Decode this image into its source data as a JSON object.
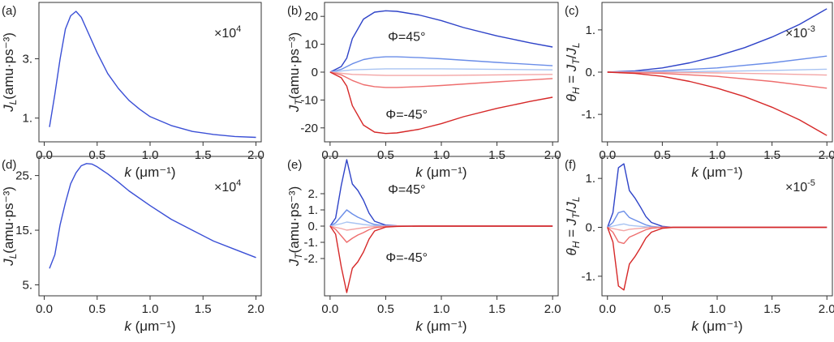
{
  "chart_data": [
    {
      "id": "a",
      "type": "line",
      "panel_label": "(a)",
      "ylabel_main": "J",
      "ylabel_sub": "L",
      "ylabel_unit": "(amu·ps⁻³)",
      "ylabel_display": "JL(amu·ps⁻³)",
      "xlabel_main": "k",
      "xlabel_unit": " (μm⁻¹)",
      "xlabel_display": "k (μm⁻¹)",
      "xlim": [
        -0.05,
        2.05
      ],
      "ylim": [
        0.2,
        4.9
      ],
      "xticks": [
        0.0,
        0.5,
        1.0,
        1.5,
        2.0
      ],
      "xticklabels": [
        "0.0",
        "0.5",
        "1.0",
        "1.5",
        "2.0"
      ],
      "yticks": [
        1,
        3
      ],
      "yticklabels": [
        "1.",
        "3."
      ],
      "multiplier": "×10",
      "multiplier_exp": "4",
      "multiplier_display": "×10^4",
      "annotations": [],
      "series": [
        {
          "color": "#3a4fd6",
          "x": [
            0.05,
            0.1,
            0.15,
            0.2,
            0.25,
            0.3,
            0.35,
            0.4,
            0.5,
            0.6,
            0.7,
            0.8,
            0.9,
            1.0,
            1.2,
            1.4,
            1.6,
            1.8,
            2.0
          ],
          "y": [
            0.7,
            1.8,
            3.0,
            4.0,
            4.45,
            4.6,
            4.4,
            4.0,
            3.2,
            2.5,
            2.0,
            1.6,
            1.3,
            1.05,
            0.75,
            0.55,
            0.45,
            0.38,
            0.35
          ]
        }
      ]
    },
    {
      "id": "b",
      "type": "line",
      "panel_label": "(b)",
      "ylabel_main": "J",
      "ylabel_sub": "T",
      "ylabel_unit": "(amu·ps⁻³)",
      "ylabel_display": "JT(amu·ps⁻³)",
      "xlabel_main": "k",
      "xlabel_unit": " (μm⁻¹)",
      "xlabel_display": "k (μm⁻¹)",
      "xlim": [
        -0.05,
        2.05
      ],
      "ylim": [
        -25,
        25
      ],
      "xticks": [
        0.0,
        0.5,
        1.0,
        1.5,
        2.0
      ],
      "xticklabels": [
        "0.0",
        "0.5",
        "1.0",
        "1.5",
        "2.0"
      ],
      "yticks": [
        -20,
        -10,
        0,
        10,
        20
      ],
      "yticklabels": [
        "-20",
        "-10",
        "0",
        "10",
        "20"
      ],
      "multiplier": "",
      "multiplier_exp": "",
      "multiplier_display": "",
      "annotations": [
        {
          "text": "Φ=45°",
          "x": 0.52,
          "y": 13
        },
        {
          "text": "Φ=-45°",
          "x": 0.5,
          "y": -15
        }
      ],
      "series": [
        {
          "color": "#2e43c8",
          "x": [
            0.0,
            0.1,
            0.15,
            0.2,
            0.3,
            0.4,
            0.5,
            0.6,
            0.8,
            1.0,
            1.2,
            1.5,
            1.8,
            2.0
          ],
          "y": [
            0,
            2,
            5,
            12,
            19,
            21.5,
            22,
            21.8,
            20.5,
            18.5,
            16,
            13,
            10.5,
            9
          ]
        },
        {
          "color": "#6a8de8",
          "x": [
            0.0,
            0.1,
            0.2,
            0.3,
            0.4,
            0.5,
            0.6,
            0.8,
            1.0,
            1.5,
            2.0
          ],
          "y": [
            0,
            1,
            3,
            4.5,
            5.2,
            5.5,
            5.5,
            5.2,
            4.8,
            3.5,
            2.3
          ]
        },
        {
          "color": "#a9c4f2",
          "x": [
            0.0,
            0.2,
            0.5,
            1.0,
            1.5,
            2.0
          ],
          "y": [
            0,
            0.8,
            1.2,
            1.2,
            1.0,
            0.8
          ]
        },
        {
          "color": "#f3a6a6",
          "x": [
            0.0,
            0.2,
            0.5,
            1.0,
            1.5,
            2.0
          ],
          "y": [
            0,
            -0.8,
            -1.2,
            -1.2,
            -1.0,
            -0.8
          ]
        },
        {
          "color": "#ee6e6e",
          "x": [
            0.0,
            0.1,
            0.2,
            0.3,
            0.4,
            0.5,
            0.6,
            0.8,
            1.0,
            1.5,
            2.0
          ],
          "y": [
            0,
            -1,
            -3,
            -4.5,
            -5.2,
            -5.5,
            -5.5,
            -5.2,
            -4.8,
            -3.5,
            -2.3
          ]
        },
        {
          "color": "#d62828",
          "x": [
            0.0,
            0.1,
            0.15,
            0.2,
            0.3,
            0.4,
            0.5,
            0.6,
            0.8,
            1.0,
            1.2,
            1.5,
            1.8,
            2.0
          ],
          "y": [
            0,
            -2,
            -5,
            -12,
            -19,
            -21.5,
            -22,
            -21.8,
            -20.5,
            -18.5,
            -16,
            -13,
            -10.5,
            -9
          ]
        }
      ]
    },
    {
      "id": "c",
      "type": "line",
      "panel_label": "(c)",
      "ylabel_main": "θ",
      "ylabel_sub": "H",
      "ylabel_unit": " = J_T/J_L",
      "ylabel_display": "θH = JT/JL",
      "xlabel_main": "k",
      "xlabel_unit": " (μm⁻¹)",
      "xlabel_display": "k (μm⁻¹)",
      "xlim": [
        -0.05,
        2.05
      ],
      "ylim": [
        -1.65,
        1.65
      ],
      "xticks": [
        0.0,
        0.5,
        1.0,
        1.5,
        2.0
      ],
      "xticklabels": [
        "0.0",
        "0.5",
        "1.0",
        "1.5",
        "2.0"
      ],
      "yticks": [
        -1,
        0,
        1
      ],
      "yticklabels": [
        "-1.",
        "0.",
        "1."
      ],
      "multiplier": "×10",
      "multiplier_exp": "-3",
      "multiplier_display": "×10^-3",
      "annotations": [],
      "series": [
        {
          "color": "#2e43c8",
          "x": [
            0.0,
            0.25,
            0.5,
            0.75,
            1.0,
            1.25,
            1.5,
            1.75,
            2.0
          ],
          "y": [
            0,
            0.03,
            0.1,
            0.22,
            0.38,
            0.58,
            0.83,
            1.13,
            1.5
          ]
        },
        {
          "color": "#6a8de8",
          "x": [
            0.0,
            0.5,
            1.0,
            1.5,
            2.0
          ],
          "y": [
            0,
            0.03,
            0.1,
            0.22,
            0.38
          ]
        },
        {
          "color": "#a9c4f2",
          "x": [
            0.0,
            0.5,
            1.0,
            1.5,
            2.0
          ],
          "y": [
            0,
            0.005,
            0.02,
            0.04,
            0.07
          ]
        },
        {
          "color": "#f3a6a6",
          "x": [
            0.0,
            0.5,
            1.0,
            1.5,
            2.0
          ],
          "y": [
            0,
            -0.005,
            -0.02,
            -0.04,
            -0.07
          ]
        },
        {
          "color": "#ee6e6e",
          "x": [
            0.0,
            0.5,
            1.0,
            1.5,
            2.0
          ],
          "y": [
            0,
            -0.03,
            -0.1,
            -0.22,
            -0.38
          ]
        },
        {
          "color": "#d62828",
          "x": [
            0.0,
            0.25,
            0.5,
            0.75,
            1.0,
            1.25,
            1.5,
            1.75,
            2.0
          ],
          "y": [
            0,
            -0.03,
            -0.1,
            -0.22,
            -0.38,
            -0.58,
            -0.83,
            -1.13,
            -1.5
          ]
        }
      ]
    },
    {
      "id": "d",
      "type": "line",
      "panel_label": "(d)",
      "ylabel_main": "J",
      "ylabel_sub": "L",
      "ylabel_unit": "(amu·ps⁻³)",
      "ylabel_display": "JL(amu·ps⁻³)",
      "xlabel_main": "k",
      "xlabel_unit": " (μm⁻¹)",
      "xlabel_display": "k (μm⁻¹)",
      "xlim": [
        -0.05,
        2.05
      ],
      "ylim": [
        3,
        28.5
      ],
      "xticks": [
        0.0,
        0.5,
        1.0,
        1.5,
        2.0
      ],
      "xticklabels": [
        "0.0",
        "0.5",
        "1.0",
        "1.5",
        "2.0"
      ],
      "yticks": [
        5,
        15,
        25
      ],
      "yticklabels": [
        "5.",
        "15.",
        "25."
      ],
      "multiplier": "×10",
      "multiplier_exp": "4",
      "multiplier_display": "×10^4",
      "annotations": [],
      "series": [
        {
          "color": "#3a4fd6",
          "x": [
            0.05,
            0.1,
            0.15,
            0.2,
            0.25,
            0.3,
            0.35,
            0.4,
            0.45,
            0.5,
            0.6,
            0.7,
            0.8,
            1.0,
            1.2,
            1.4,
            1.6,
            1.8,
            2.0
          ],
          "y": [
            8,
            10.5,
            16,
            20,
            23.5,
            25.5,
            26.8,
            27.2,
            27.1,
            26.6,
            25.3,
            23.8,
            22.2,
            19.5,
            17,
            15,
            13,
            11.5,
            10
          ]
        }
      ]
    },
    {
      "id": "e",
      "type": "line",
      "panel_label": "(e)",
      "ylabel_main": "J",
      "ylabel_sub": "T",
      "ylabel_unit": "(amu·ps⁻³)",
      "ylabel_display": "JT(amu·ps⁻³)",
      "xlabel_main": "k",
      "xlabel_unit": " (μm⁻¹)",
      "xlabel_display": "k (μm⁻¹)",
      "xlim": [
        -0.05,
        2.05
      ],
      "ylim": [
        -4.3,
        4.3
      ],
      "xticks": [
        0.0,
        0.5,
        1.0,
        1.5,
        2.0
      ],
      "xticklabels": [
        "0.0",
        "0.5",
        "1.0",
        "1.5",
        "2.0"
      ],
      "yticks": [
        -2,
        -1,
        0,
        1,
        2
      ],
      "yticklabels": [
        "-2.",
        "-1.",
        "0.",
        "1.",
        "2."
      ],
      "multiplier": "",
      "multiplier_exp": "",
      "multiplier_display": "",
      "annotations": [
        {
          "text": "Φ=45°",
          "x": 0.52,
          "y": 2.3
        },
        {
          "text": "Φ=-45°",
          "x": 0.5,
          "y": -1.9
        }
      ],
      "series": [
        {
          "color": "#2e43c8",
          "x": [
            0.0,
            0.05,
            0.1,
            0.15,
            0.2,
            0.25,
            0.3,
            0.35,
            0.4,
            0.5,
            0.6,
            0.8,
            1.0,
            2.0
          ],
          "y": [
            0,
            0.5,
            2.5,
            4.1,
            2.6,
            2.2,
            1.6,
            0.8,
            0.3,
            0.06,
            0.02,
            0,
            0,
            0
          ]
        },
        {
          "color": "#6a8de8",
          "x": [
            0.0,
            0.05,
            0.1,
            0.15,
            0.2,
            0.25,
            0.3,
            0.35,
            0.4,
            0.5,
            0.6,
            1.0,
            2.0
          ],
          "y": [
            0,
            0.2,
            0.6,
            1.0,
            0.75,
            0.55,
            0.4,
            0.22,
            0.1,
            0.02,
            0,
            0,
            0
          ]
        },
        {
          "color": "#a9c4f2",
          "x": [
            0.0,
            0.1,
            0.15,
            0.2,
            0.3,
            0.4,
            0.6,
            2.0
          ],
          "y": [
            0,
            0.15,
            0.25,
            0.2,
            0.1,
            0.03,
            0,
            0
          ]
        },
        {
          "color": "#f3a6a6",
          "x": [
            0.0,
            0.1,
            0.15,
            0.2,
            0.3,
            0.4,
            0.6,
            2.0
          ],
          "y": [
            0,
            -0.15,
            -0.25,
            -0.2,
            -0.1,
            -0.03,
            0,
            0
          ]
        },
        {
          "color": "#ee6e6e",
          "x": [
            0.0,
            0.05,
            0.1,
            0.15,
            0.2,
            0.25,
            0.3,
            0.35,
            0.4,
            0.5,
            0.6,
            1.0,
            2.0
          ],
          "y": [
            0,
            -0.2,
            -0.6,
            -1.0,
            -0.75,
            -0.55,
            -0.4,
            -0.22,
            -0.1,
            -0.02,
            0,
            0,
            0
          ]
        },
        {
          "color": "#d62828",
          "x": [
            0.0,
            0.05,
            0.1,
            0.15,
            0.2,
            0.25,
            0.3,
            0.35,
            0.4,
            0.5,
            0.6,
            0.8,
            1.0,
            2.0
          ],
          "y": [
            0,
            -0.5,
            -2.5,
            -4.1,
            -2.6,
            -2.2,
            -1.6,
            -0.8,
            -0.3,
            -0.06,
            -0.02,
            0,
            0,
            0
          ]
        }
      ]
    },
    {
      "id": "f",
      "type": "line",
      "panel_label": "(f)",
      "ylabel_main": "θ",
      "ylabel_sub": "H",
      "ylabel_unit": " = J_T/J_L",
      "ylabel_display": "θH = JT/JL",
      "xlabel_main": "k",
      "xlabel_unit": " (μm⁻¹)",
      "xlabel_display": "k (μm⁻¹)",
      "xlim": [
        -0.05,
        2.05
      ],
      "ylim": [
        -1.4,
        1.45
      ],
      "xticks": [
        0.0,
        0.5,
        1.0,
        1.5,
        2.0
      ],
      "xticklabels": [
        "0.0",
        "0.5",
        "1.0",
        "1.5",
        "2.0"
      ],
      "yticks": [
        -1,
        0,
        1
      ],
      "yticklabels": [
        "-1.",
        "0.",
        "1."
      ],
      "multiplier": "×10",
      "multiplier_exp": "-5",
      "multiplier_display": "×10^-5",
      "annotations": [],
      "series": [
        {
          "color": "#2e43c8",
          "x": [
            0.0,
            0.05,
            0.1,
            0.15,
            0.2,
            0.25,
            0.3,
            0.35,
            0.4,
            0.5,
            0.6,
            1.0,
            2.0
          ],
          "y": [
            0,
            0.3,
            1.22,
            1.3,
            0.75,
            0.6,
            0.42,
            0.22,
            0.1,
            0.02,
            0,
            0,
            0
          ]
        },
        {
          "color": "#6a8de8",
          "x": [
            0.0,
            0.05,
            0.1,
            0.15,
            0.2,
            0.25,
            0.3,
            0.35,
            0.4,
            0.5,
            1.0,
            2.0
          ],
          "y": [
            0,
            0.1,
            0.3,
            0.33,
            0.2,
            0.15,
            0.1,
            0.05,
            0.02,
            0,
            0,
            0
          ]
        },
        {
          "color": "#a9c4f2",
          "x": [
            0.0,
            0.1,
            0.15,
            0.2,
            0.3,
            0.4,
            2.0
          ],
          "y": [
            0,
            0.05,
            0.07,
            0.04,
            0.02,
            0,
            0
          ]
        },
        {
          "color": "#f3a6a6",
          "x": [
            0.0,
            0.1,
            0.15,
            0.2,
            0.3,
            0.4,
            2.0
          ],
          "y": [
            0,
            -0.05,
            -0.07,
            -0.04,
            -0.02,
            0,
            0
          ]
        },
        {
          "color": "#ee6e6e",
          "x": [
            0.0,
            0.05,
            0.1,
            0.15,
            0.2,
            0.25,
            0.3,
            0.35,
            0.4,
            0.5,
            1.0,
            2.0
          ],
          "y": [
            0,
            -0.1,
            -0.3,
            -0.33,
            -0.2,
            -0.15,
            -0.1,
            -0.05,
            -0.02,
            0,
            0,
            0
          ]
        },
        {
          "color": "#d62828",
          "x": [
            0.0,
            0.05,
            0.1,
            0.15,
            0.2,
            0.25,
            0.3,
            0.35,
            0.4,
            0.5,
            0.6,
            1.0,
            2.0
          ],
          "y": [
            0,
            -0.3,
            -1.2,
            -1.28,
            -0.75,
            -0.6,
            -0.42,
            -0.22,
            -0.1,
            -0.02,
            0,
            0,
            0
          ]
        }
      ]
    }
  ]
}
